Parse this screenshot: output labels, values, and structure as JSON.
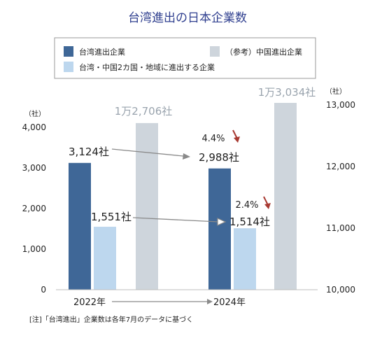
{
  "title": "台湾進出の日本企業数",
  "legend": {
    "item1": "台湾進出企業",
    "item2": "（参考）中国進出企業",
    "item3": "台湾・中国2カ国・地域に進出する企業"
  },
  "left_axis_unit": "（社）",
  "right_axis_unit": "（社）",
  "note": "[注]「台湾進出」企業数は各年7月のデータに基づく",
  "labels": {
    "taiwan_2022": "3,124社",
    "both_2022": "1,551社",
    "china_2022": "1万2,706社",
    "taiwan_2024": "2,988社",
    "both_2024": "1,514社",
    "china_2024": "1万3,034社",
    "taiwan_change": "4.4%",
    "both_change": "2.4%"
  },
  "colors": {
    "taiwan": "#3f6797",
    "both": "#bdd7ee",
    "china": "#ced5dc",
    "arrow": "#8a8a8a",
    "down_arrow": "#a83a32"
  },
  "chart_data": {
    "type": "bar",
    "categories": [
      "2022年",
      "2024年"
    ],
    "series": [
      {
        "name": "台湾進出企業",
        "axis": "left",
        "values": [
          3124,
          2988
        ]
      },
      {
        "name": "台湾・中国2カ国・地域に進出する企業",
        "axis": "left",
        "values": [
          1551,
          1514
        ]
      },
      {
        "name": "（参考）中国進出企業",
        "axis": "right",
        "values": [
          12706,
          13034
        ]
      }
    ],
    "left_axis": {
      "min": 0,
      "max": 4000,
      "ticks": [
        "0",
        "1,000",
        "2,000",
        "3,000",
        "4,000"
      ]
    },
    "right_axis": {
      "min": 10000,
      "max": 13000,
      "ticks": [
        "10,000",
        "11,000",
        "12,000",
        "13,000"
      ]
    },
    "annotations": [
      {
        "series": "台湾進出企業",
        "change": "4.4%",
        "direction": "down"
      },
      {
        "series": "台湾・中国2カ国・地域に進出する企業",
        "change": "2.4%",
        "direction": "down"
      }
    ],
    "legend_position": "top"
  }
}
